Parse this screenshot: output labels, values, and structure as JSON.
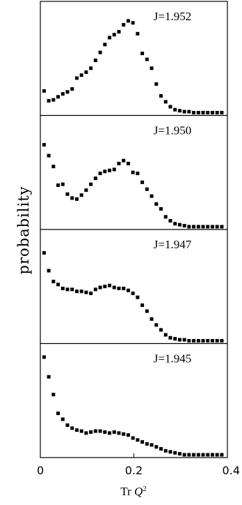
{
  "chart_data": {
    "type": "scatter",
    "ylabel": "probability",
    "xlabel_prefix": "Tr ",
    "xlabel_var": "Q",
    "xlabel_exp": "2",
    "xlim": [
      0,
      0.4
    ],
    "xticks": [
      0,
      0.2,
      0.4
    ],
    "xtick_labels": [
      "0",
      "0.2",
      "0.4"
    ],
    "marker_color": "#000000",
    "panels": [
      {
        "label": "J=1.952",
        "ylim": [
          0,
          1
        ],
        "x": [
          0.008,
          0.018,
          0.028,
          0.038,
          0.048,
          0.058,
          0.068,
          0.078,
          0.088,
          0.098,
          0.108,
          0.118,
          0.128,
          0.138,
          0.148,
          0.158,
          0.168,
          0.178,
          0.188,
          0.198,
          0.208,
          0.218,
          0.228,
          0.238,
          0.248,
          0.258,
          0.268,
          0.278,
          0.288,
          0.298,
          0.308,
          0.318,
          0.328,
          0.338,
          0.348,
          0.358,
          0.368,
          0.378,
          0.388
        ],
        "y": [
          0.22,
          0.12,
          0.13,
          0.16,
          0.19,
          0.21,
          0.24,
          0.35,
          0.38,
          0.41,
          0.45,
          0.53,
          0.61,
          0.69,
          0.76,
          0.79,
          0.82,
          0.89,
          0.93,
          0.91,
          0.8,
          0.6,
          0.54,
          0.45,
          0.29,
          0.17,
          0.11,
          0.06,
          0.03,
          0.02,
          0.01,
          0.01,
          0.0,
          0.0,
          0.0,
          0.0,
          0.0,
          0.0,
          0.0
        ]
      },
      {
        "label": "J=1.950",
        "ylim": [
          0,
          1
        ],
        "x": [
          0.008,
          0.018,
          0.028,
          0.038,
          0.048,
          0.058,
          0.068,
          0.078,
          0.088,
          0.098,
          0.108,
          0.118,
          0.128,
          0.138,
          0.148,
          0.158,
          0.168,
          0.178,
          0.188,
          0.198,
          0.208,
          0.218,
          0.228,
          0.238,
          0.248,
          0.258,
          0.268,
          0.278,
          0.288,
          0.298,
          0.308,
          0.318,
          0.328,
          0.338,
          0.348,
          0.358,
          0.368,
          0.378,
          0.388
        ],
        "y": [
          0.83,
          0.72,
          0.61,
          0.42,
          0.43,
          0.33,
          0.29,
          0.28,
          0.32,
          0.37,
          0.43,
          0.49,
          0.54,
          0.56,
          0.57,
          0.58,
          0.64,
          0.67,
          0.64,
          0.55,
          0.54,
          0.45,
          0.38,
          0.31,
          0.23,
          0.18,
          0.1,
          0.06,
          0.03,
          0.02,
          0.01,
          0.0,
          0.0,
          0.0,
          0.0,
          0.0,
          0.0,
          0.0,
          0.0
        ]
      },
      {
        "label": "J=1.947",
        "ylim": [
          0,
          1
        ],
        "x": [
          0.008,
          0.018,
          0.028,
          0.038,
          0.048,
          0.058,
          0.068,
          0.078,
          0.088,
          0.098,
          0.108,
          0.118,
          0.128,
          0.138,
          0.148,
          0.158,
          0.168,
          0.178,
          0.188,
          0.198,
          0.208,
          0.218,
          0.228,
          0.238,
          0.248,
          0.258,
          0.268,
          0.278,
          0.288,
          0.298,
          0.308,
          0.318,
          0.328,
          0.338,
          0.348,
          0.358,
          0.368,
          0.378,
          0.388
        ],
        "y": [
          0.89,
          0.71,
          0.6,
          0.57,
          0.53,
          0.52,
          0.52,
          0.5,
          0.5,
          0.49,
          0.48,
          0.52,
          0.54,
          0.55,
          0.56,
          0.54,
          0.53,
          0.53,
          0.51,
          0.48,
          0.44,
          0.36,
          0.3,
          0.22,
          0.16,
          0.11,
          0.06,
          0.03,
          0.02,
          0.01,
          0.01,
          0.0,
          0.0,
          0.0,
          0.0,
          0.0,
          0.0,
          0.0,
          0.0
        ]
      },
      {
        "label": "J=1.945",
        "ylim": [
          0,
          1
        ],
        "x": [
          0.008,
          0.018,
          0.028,
          0.038,
          0.048,
          0.058,
          0.068,
          0.078,
          0.088,
          0.098,
          0.108,
          0.118,
          0.128,
          0.138,
          0.148,
          0.158,
          0.168,
          0.178,
          0.188,
          0.198,
          0.208,
          0.218,
          0.228,
          0.238,
          0.248,
          0.258,
          0.268,
          0.278,
          0.288,
          0.298,
          0.308,
          0.318,
          0.328,
          0.338,
          0.348,
          0.358,
          0.368,
          0.378,
          0.388
        ],
        "y": [
          0.99,
          0.79,
          0.61,
          0.42,
          0.36,
          0.3,
          0.27,
          0.25,
          0.24,
          0.22,
          0.23,
          0.24,
          0.24,
          0.23,
          0.22,
          0.23,
          0.22,
          0.21,
          0.2,
          0.17,
          0.15,
          0.13,
          0.11,
          0.1,
          0.08,
          0.06,
          0.04,
          0.03,
          0.02,
          0.01,
          0.0,
          0.0,
          0.0,
          0.0,
          0.0,
          0.0,
          0.0,
          0.0,
          0.0
        ]
      }
    ]
  }
}
